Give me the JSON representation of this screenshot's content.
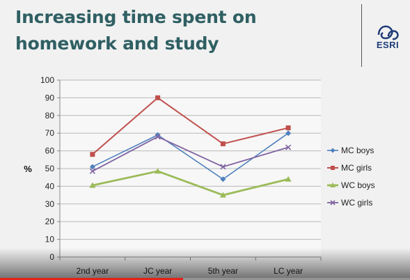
{
  "slide": {
    "title": "Increasing time spent on homework and study",
    "logo_text": "ESRI"
  },
  "video": {
    "progress": 0.447
  },
  "colors": {
    "MC boys": "#4f81bd",
    "MC girls": "#c0504d",
    "WC boys": "#9bbb59",
    "WC girls": "#8064a2"
  },
  "chart_data": {
    "type": "line",
    "categories": [
      "2nd year",
      "JC year",
      "5th year",
      "LC year"
    ],
    "series": [
      {
        "name": "MC boys",
        "values": [
          51,
          69,
          44,
          70
        ],
        "marker": "diamond"
      },
      {
        "name": "MC girls",
        "values": [
          58,
          90,
          64,
          73
        ],
        "marker": "square"
      },
      {
        "name": "WC boys",
        "values": [
          40.5,
          48.5,
          35,
          44
        ],
        "marker": "triangle"
      },
      {
        "name": "WC girls",
        "values": [
          48.5,
          68,
          51,
          62
        ],
        "marker": "x"
      }
    ],
    "ylabel": "%",
    "ylim": [
      0,
      100
    ],
    "yticks": [
      0,
      10,
      20,
      30,
      40,
      50,
      60,
      70,
      80,
      90,
      100
    ],
    "grid": true,
    "legend": "right"
  }
}
